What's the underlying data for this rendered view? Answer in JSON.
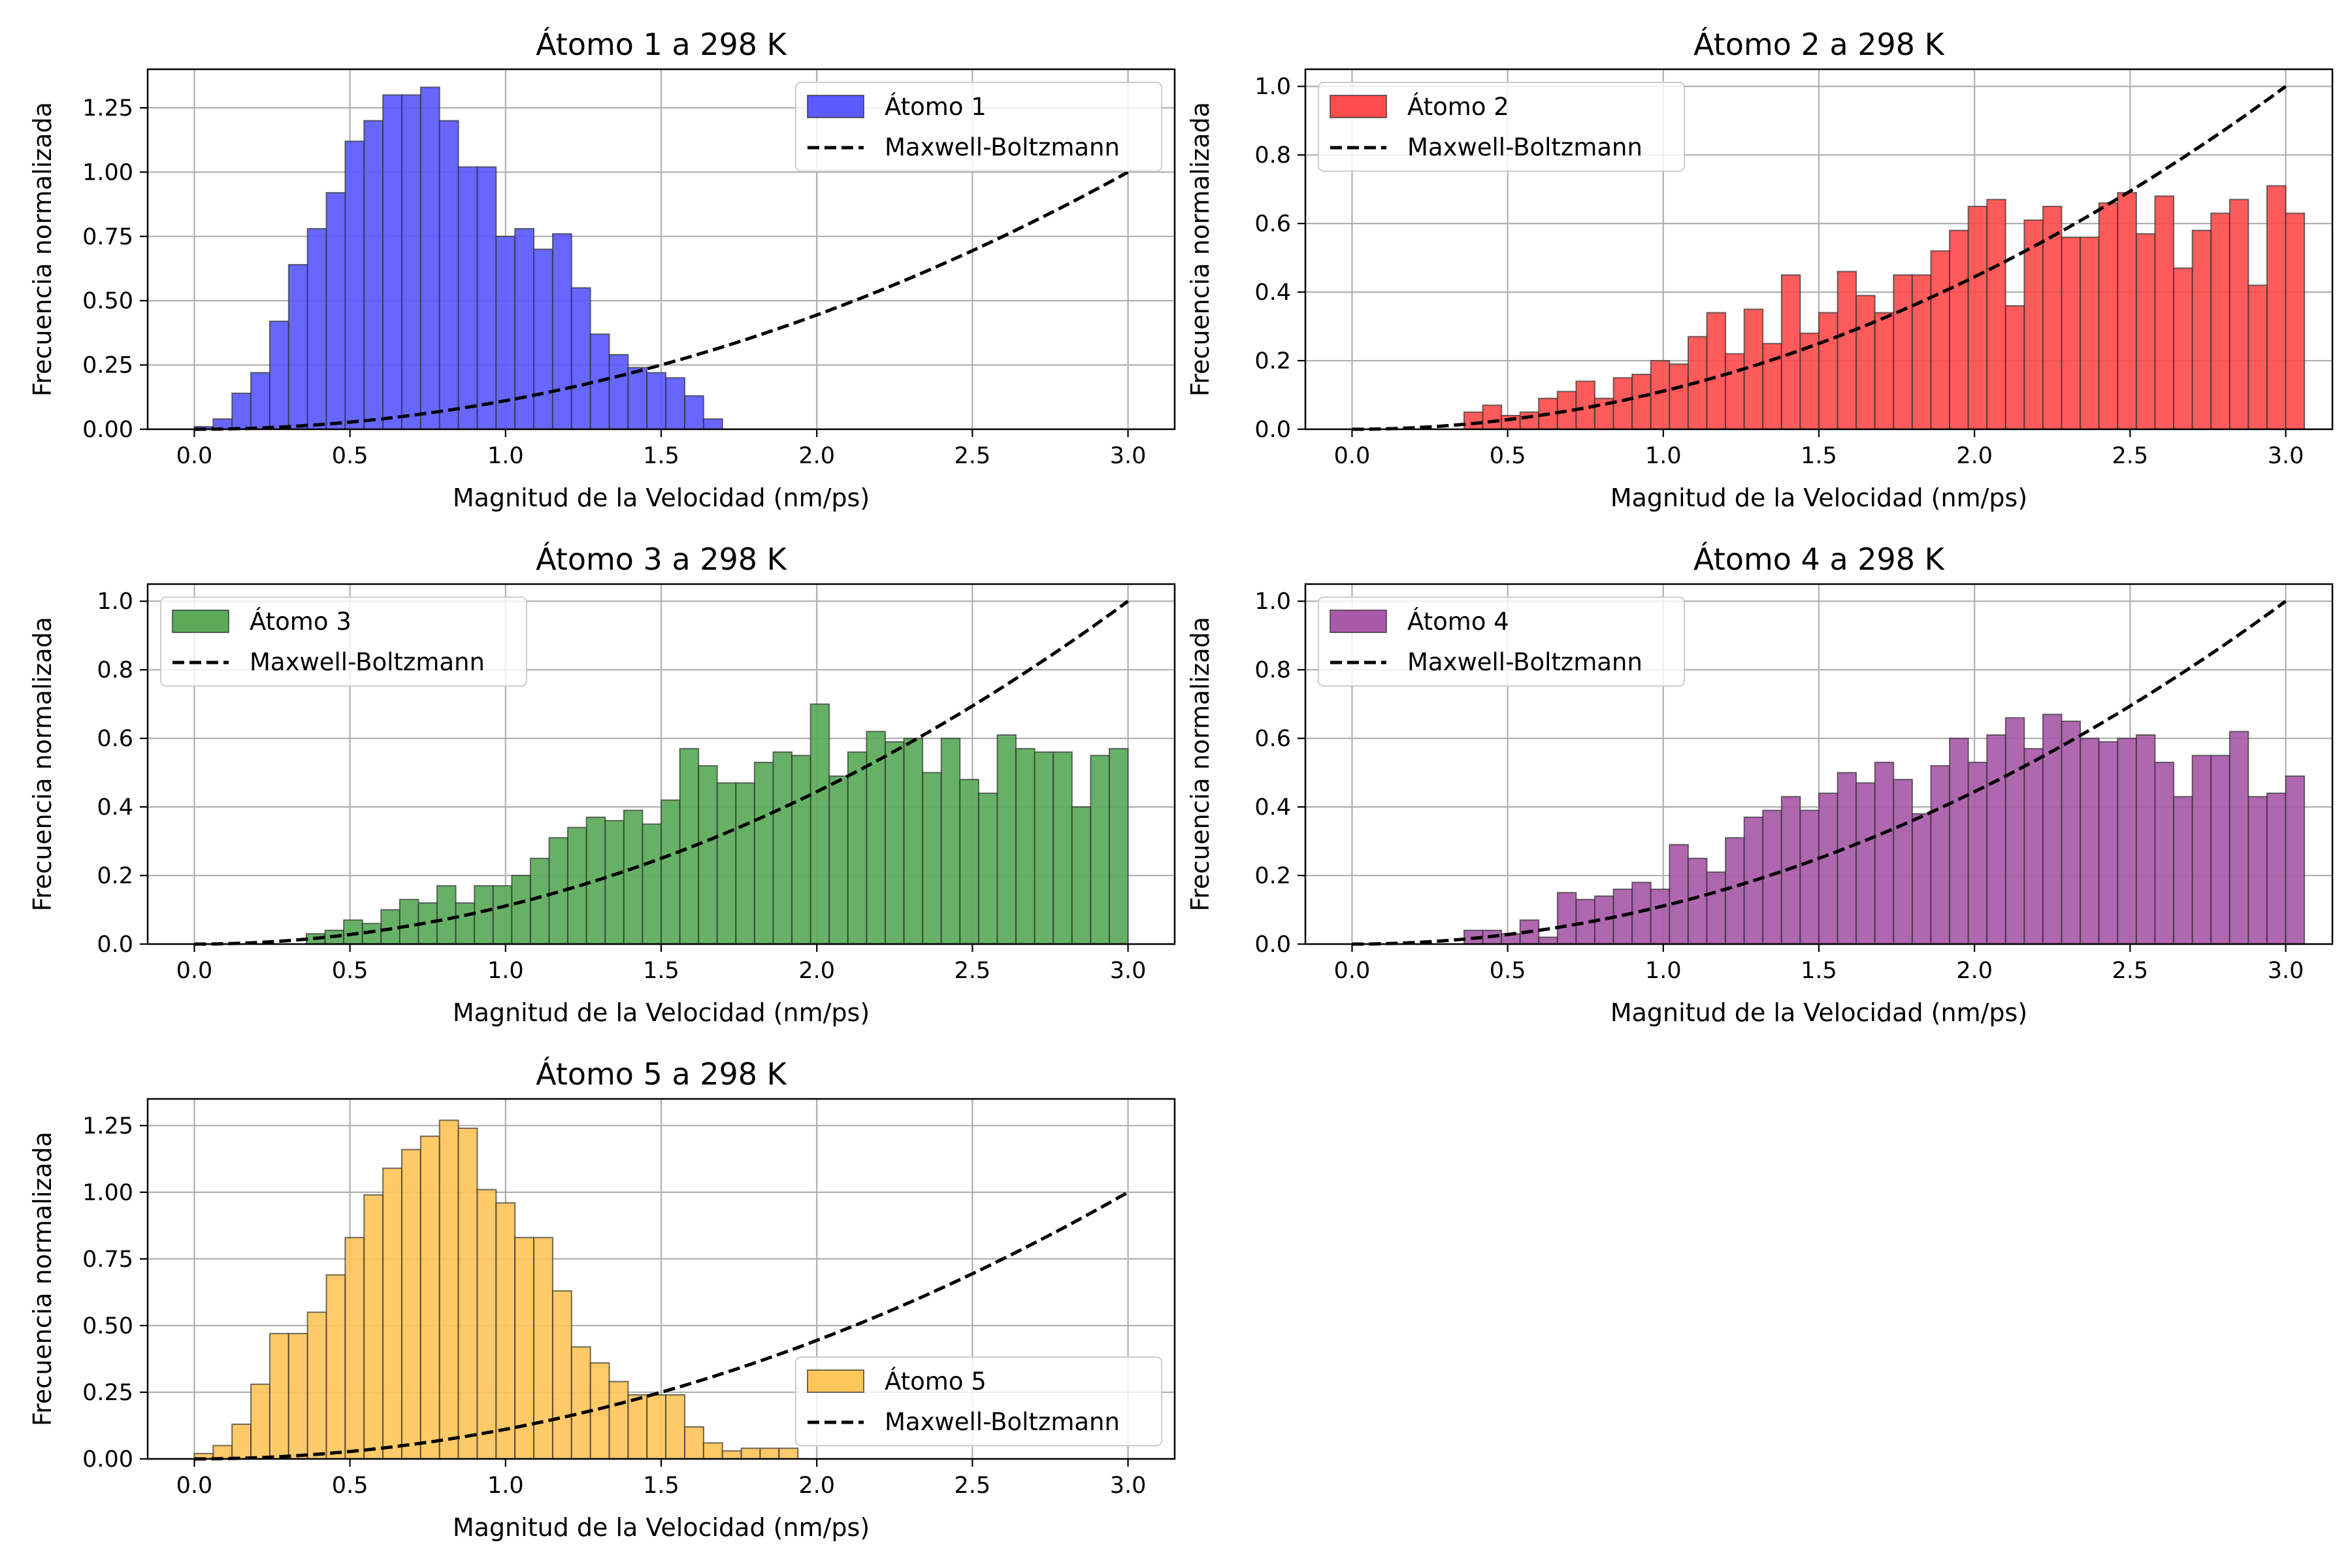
{
  "figure": {
    "background": "#ffffff"
  },
  "chart_data": [
    {
      "type": "bar",
      "title": "Átomo 1 a 298 K",
      "xlabel": "Magnitud de la Velocidad (nm/ps)",
      "ylabel": "Frecuencia normalizada",
      "xlim": [
        -0.15,
        3.15
      ],
      "ylim": [
        0,
        1.4
      ],
      "xticks": [
        "0.0",
        "0.5",
        "1.0",
        "1.5",
        "2.0",
        "2.5",
        "3.0"
      ],
      "yticks": [
        "0.00",
        "0.25",
        "0.50",
        "0.75",
        "1.00",
        "1.25"
      ],
      "grid": true,
      "legend_position": "upper right",
      "bin_width": 0.0606,
      "series": [
        {
          "name": "Átomo 1",
          "kind": "histogram",
          "color": "#5a5aff",
          "x_start": 0.0,
          "values": [
            0.01,
            0.04,
            0.14,
            0.22,
            0.42,
            0.64,
            0.78,
            0.92,
            1.12,
            1.2,
            1.3,
            1.3,
            1.33,
            1.2,
            1.02,
            1.02,
            0.75,
            0.78,
            0.7,
            0.76,
            0.55,
            0.37,
            0.29,
            0.24,
            0.22,
            0.2,
            0.13,
            0.04,
            0.0,
            0.0,
            0.0,
            0.0,
            0.0,
            0.0,
            0.0,
            0.0,
            0.0,
            0.0,
            0.0,
            0.0,
            0.0,
            0.0,
            0.0,
            0.0,
            0.0,
            0.0,
            0.0,
            0.0,
            0.0,
            0.0
          ]
        },
        {
          "name": "Maxwell-Boltzmann",
          "kind": "curve",
          "color": "#000000",
          "x_start": 0.0,
          "x_end": 3.0,
          "formula": "y = (x/3)^2"
        }
      ]
    },
    {
      "type": "bar",
      "title": "Átomo 2 a 298 K",
      "xlabel": "Magnitud de la Velocidad (nm/ps)",
      "ylabel": "Frecuencia normalizada",
      "xlim": [
        -0.15,
        3.15
      ],
      "ylim": [
        0,
        1.05
      ],
      "xticks": [
        "0.0",
        "0.5",
        "1.0",
        "1.5",
        "2.0",
        "2.5",
        "3.0"
      ],
      "yticks": [
        "0.0",
        "0.2",
        "0.4",
        "0.6",
        "0.8",
        "1.0"
      ],
      "grid": true,
      "legend_position": "upper left",
      "bin_width": 0.06,
      "series": [
        {
          "name": "Átomo 2",
          "kind": "histogram",
          "color": "#ff4d4d",
          "x_start": 0.0,
          "values": [
            0.0,
            0.0,
            0.0,
            0.0,
            0.0,
            0.0,
            0.05,
            0.07,
            0.04,
            0.05,
            0.09,
            0.11,
            0.14,
            0.09,
            0.15,
            0.16,
            0.2,
            0.19,
            0.27,
            0.34,
            0.22,
            0.35,
            0.25,
            0.45,
            0.28,
            0.34,
            0.46,
            0.39,
            0.34,
            0.45,
            0.45,
            0.52,
            0.58,
            0.65,
            0.67,
            0.36,
            0.61,
            0.65,
            0.56,
            0.56,
            0.66,
            0.69,
            0.57,
            0.68,
            0.47,
            0.58,
            0.63,
            0.67,
            0.42,
            0.71,
            0.63
          ]
        },
        {
          "name": "Maxwell-Boltzmann",
          "kind": "curve",
          "color": "#000000",
          "x_start": 0.0,
          "x_end": 3.0,
          "formula": "y = (x/3)^2"
        }
      ]
    },
    {
      "type": "bar",
      "title": "Átomo 3 a 298 K",
      "xlabel": "Magnitud de la Velocidad (nm/ps)",
      "ylabel": "Frecuencia normalizada",
      "xlim": [
        -0.15,
        3.15
      ],
      "ylim": [
        0,
        1.05
      ],
      "xticks": [
        "0.0",
        "0.5",
        "1.0",
        "1.5",
        "2.0",
        "2.5",
        "3.0"
      ],
      "yticks": [
        "0.0",
        "0.2",
        "0.4",
        "0.6",
        "0.8",
        "1.0"
      ],
      "grid": true,
      "legend_position": "upper left",
      "bin_width": 0.06,
      "series": [
        {
          "name": "Átomo 3",
          "kind": "histogram",
          "color": "#5aaa5a",
          "x_start": 0.0,
          "values": [
            0.0,
            0.0,
            0.0,
            0.0,
            0.0,
            0.0,
            0.03,
            0.04,
            0.07,
            0.06,
            0.1,
            0.13,
            0.12,
            0.17,
            0.12,
            0.17,
            0.17,
            0.2,
            0.25,
            0.31,
            0.34,
            0.37,
            0.36,
            0.39,
            0.35,
            0.42,
            0.57,
            0.52,
            0.47,
            0.47,
            0.53,
            0.56,
            0.55,
            0.7,
            0.49,
            0.56,
            0.62,
            0.59,
            0.6,
            0.5,
            0.6,
            0.48,
            0.44,
            0.61,
            0.57,
            0.56,
            0.56,
            0.4,
            0.55,
            0.57
          ]
        },
        {
          "name": "Maxwell-Boltzmann",
          "kind": "curve",
          "color": "#000000",
          "x_start": 0.0,
          "x_end": 3.0,
          "formula": "y = (x/3)^2"
        }
      ]
    },
    {
      "type": "bar",
      "title": "Átomo 4 a 298 K",
      "xlabel": "Magnitud de la Velocidad (nm/ps)",
      "ylabel": "Frecuencia normalizada",
      "xlim": [
        -0.15,
        3.15
      ],
      "ylim": [
        0,
        1.05
      ],
      "xticks": [
        "0.0",
        "0.5",
        "1.0",
        "1.5",
        "2.0",
        "2.5",
        "3.0"
      ],
      "yticks": [
        "0.0",
        "0.2",
        "0.4",
        "0.6",
        "0.8",
        "1.0"
      ],
      "grid": true,
      "legend_position": "upper left",
      "bin_width": 0.06,
      "series": [
        {
          "name": "Átomo 4",
          "kind": "histogram",
          "color": "#a85aa8",
          "x_start": 0.0,
          "values": [
            0.0,
            0.0,
            0.0,
            0.0,
            0.0,
            0.0,
            0.04,
            0.04,
            0.03,
            0.07,
            0.02,
            0.15,
            0.13,
            0.14,
            0.16,
            0.18,
            0.16,
            0.29,
            0.25,
            0.21,
            0.31,
            0.37,
            0.39,
            0.43,
            0.39,
            0.44,
            0.5,
            0.47,
            0.53,
            0.48,
            0.38,
            0.52,
            0.6,
            0.53,
            0.61,
            0.66,
            0.57,
            0.67,
            0.65,
            0.6,
            0.59,
            0.6,
            0.61,
            0.53,
            0.43,
            0.55,
            0.55,
            0.62,
            0.43,
            0.44,
            0.49
          ]
        },
        {
          "name": "Maxwell-Boltzmann",
          "kind": "curve",
          "color": "#000000",
          "x_start": 0.0,
          "x_end": 3.0,
          "formula": "y = (x/3)^2"
        }
      ]
    },
    {
      "type": "bar",
      "title": "Átomo 5 a 298 K",
      "xlabel": "Magnitud de la Velocidad (nm/ps)",
      "ylabel": "Frecuencia normalizada",
      "xlim": [
        -0.15,
        3.15
      ],
      "ylim": [
        0,
        1.35
      ],
      "xticks": [
        "0.0",
        "0.5",
        "1.0",
        "1.5",
        "2.0",
        "2.5",
        "3.0"
      ],
      "yticks": [
        "0.00",
        "0.25",
        "0.50",
        "0.75",
        "1.00",
        "1.25"
      ],
      "grid": true,
      "legend_position": "lower right",
      "bin_width": 0.0606,
      "series": [
        {
          "name": "Átomo 5",
          "kind": "histogram",
          "color": "#ffc65a",
          "x_start": 0.0,
          "values": [
            0.02,
            0.05,
            0.13,
            0.28,
            0.47,
            0.47,
            0.55,
            0.69,
            0.83,
            0.99,
            1.09,
            1.16,
            1.21,
            1.27,
            1.24,
            1.01,
            0.96,
            0.83,
            0.83,
            0.63,
            0.42,
            0.36,
            0.29,
            0.24,
            0.24,
            0.24,
            0.12,
            0.06,
            0.03,
            0.04,
            0.04,
            0.04,
            0.0,
            0.0,
            0.0,
            0.0,
            0.0,
            0.0,
            0.0,
            0.0,
            0.0,
            0.0,
            0.0,
            0.0,
            0.0,
            0.0,
            0.0,
            0.0,
            0.0,
            0.0
          ]
        },
        {
          "name": "Maxwell-Boltzmann",
          "kind": "curve",
          "color": "#000000",
          "x_start": 0.0,
          "x_end": 3.0,
          "formula": "y = (x/3)^2"
        }
      ]
    }
  ]
}
